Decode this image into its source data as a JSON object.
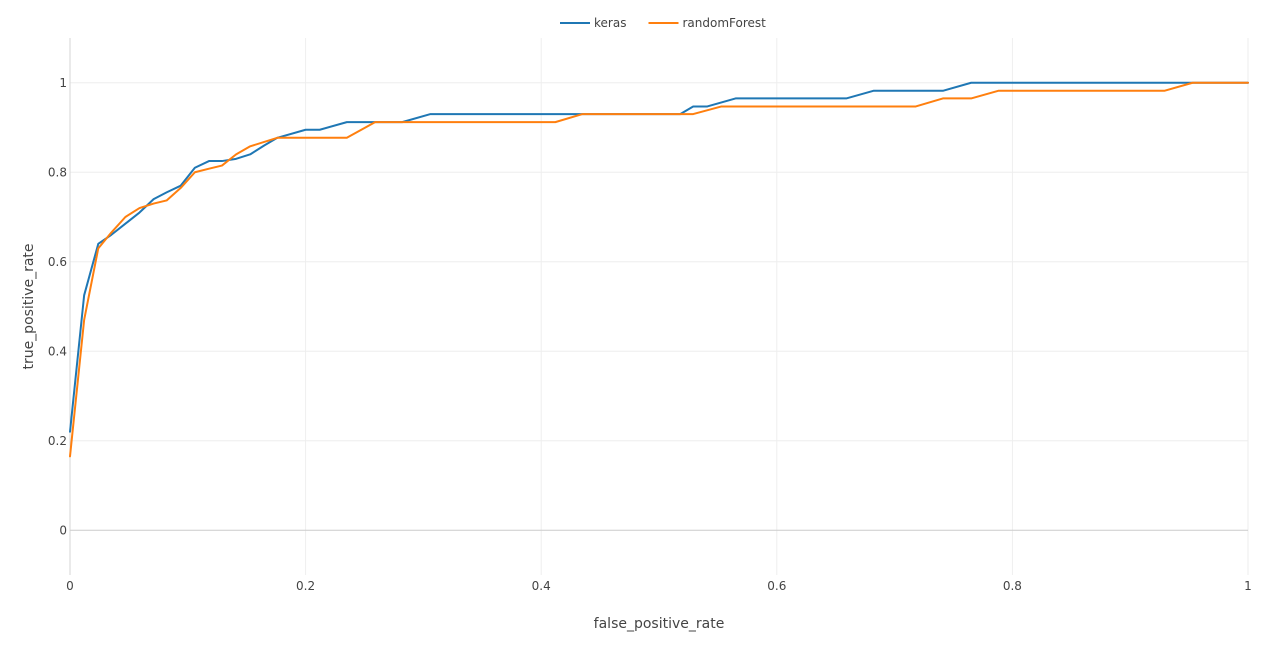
{
  "chart_data": {
    "type": "line",
    "title": "",
    "xlabel": "false_positive_rate",
    "ylabel": "true_positive_rate",
    "xlim": [
      0,
      1
    ],
    "ylim": [
      -0.1,
      1.1
    ],
    "x_ticks": [
      0,
      0.2,
      0.4,
      0.6,
      0.8,
      1
    ],
    "x_tick_labels": [
      "0",
      "0.2",
      "0.4",
      "0.6",
      "0.8",
      "1"
    ],
    "y_ticks": [
      0,
      0.2,
      0.4,
      0.6,
      0.8,
      1
    ],
    "y_tick_labels": [
      "0",
      "0.2",
      "0.4",
      "0.6",
      "0.8",
      "1"
    ],
    "grid": true,
    "legend_position": "top-center",
    "series": [
      {
        "name": "keras",
        "color": "#1f77b4",
        "points": [
          [
            0,
            0.22
          ],
          [
            0.012,
            0.525
          ],
          [
            0.024,
            0.64
          ],
          [
            0.035,
            0.66
          ],
          [
            0.047,
            0.685
          ],
          [
            0.059,
            0.71
          ],
          [
            0.071,
            0.74
          ],
          [
            0.082,
            0.755
          ],
          [
            0.094,
            0.77
          ],
          [
            0.106,
            0.81
          ],
          [
            0.118,
            0.825
          ],
          [
            0.129,
            0.825
          ],
          [
            0.141,
            0.83
          ],
          [
            0.153,
            0.84
          ],
          [
            0.165,
            0.86
          ],
          [
            0.176,
            0.877
          ],
          [
            0.2,
            0.895
          ],
          [
            0.212,
            0.895
          ],
          [
            0.235,
            0.912
          ],
          [
            0.282,
            0.912
          ],
          [
            0.306,
            0.93
          ],
          [
            0.518,
            0.93
          ],
          [
            0.529,
            0.947
          ],
          [
            0.541,
            0.947
          ],
          [
            0.565,
            0.965
          ],
          [
            0.659,
            0.965
          ],
          [
            0.682,
            0.982
          ],
          [
            0.741,
            0.982
          ],
          [
            0.765,
            1.0
          ],
          [
            1.0,
            1.0
          ]
        ]
      },
      {
        "name": "randomForest",
        "color": "#ff7f0e",
        "points": [
          [
            0,
            0.165
          ],
          [
            0.012,
            0.47
          ],
          [
            0.024,
            0.63
          ],
          [
            0.035,
            0.665
          ],
          [
            0.047,
            0.7
          ],
          [
            0.059,
            0.72
          ],
          [
            0.071,
            0.73
          ],
          [
            0.082,
            0.737
          ],
          [
            0.094,
            0.765
          ],
          [
            0.106,
            0.8
          ],
          [
            0.118,
            0.808
          ],
          [
            0.129,
            0.815
          ],
          [
            0.141,
            0.84
          ],
          [
            0.153,
            0.858
          ],
          [
            0.176,
            0.877
          ],
          [
            0.235,
            0.877
          ],
          [
            0.259,
            0.912
          ],
          [
            0.412,
            0.912
          ],
          [
            0.435,
            0.93
          ],
          [
            0.529,
            0.93
          ],
          [
            0.553,
            0.947
          ],
          [
            0.718,
            0.947
          ],
          [
            0.741,
            0.965
          ],
          [
            0.765,
            0.965
          ],
          [
            0.788,
            0.982
          ],
          [
            0.929,
            0.982
          ],
          [
            0.953,
            1.0
          ],
          [
            1.0,
            1.0
          ]
        ]
      }
    ]
  }
}
